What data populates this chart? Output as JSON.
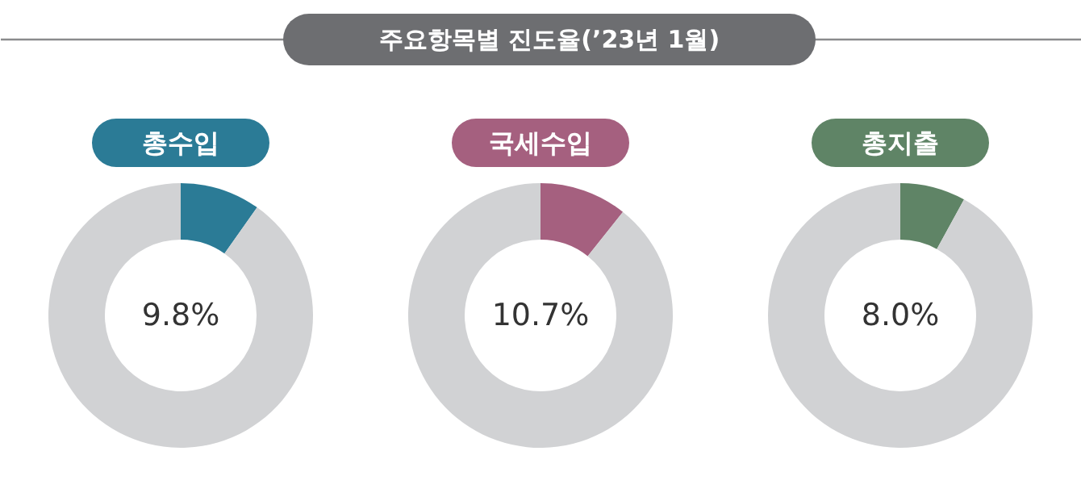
{
  "chart_data": [
    {
      "type": "other",
      "title": "주요항목별 진도율(’23년 1월)"
    },
    {
      "type": "donut",
      "title": "총수입",
      "categories": [
        null,
        null
      ],
      "values": [
        9.8,
        90.2
      ],
      "colors": [
        "#2b7b96",
        "#d1d2d4"
      ],
      "annotations": [
        "9.8%"
      ]
    },
    {
      "type": "donut",
      "title": "국세수입",
      "categories": [
        null,
        null
      ],
      "values": [
        10.7,
        89.3
      ],
      "colors": [
        "#a5607f",
        "#d1d2d4"
      ],
      "annotations": [
        "10.7%"
      ]
    },
    {
      "type": "donut",
      "title": "총지출",
      "categories": [
        null,
        null
      ],
      "values": [
        8.0,
        92.0
      ],
      "colors": [
        "#5f8466",
        "#d1d2d4"
      ],
      "annotations": [
        "8.0%"
      ]
    }
  ]
}
